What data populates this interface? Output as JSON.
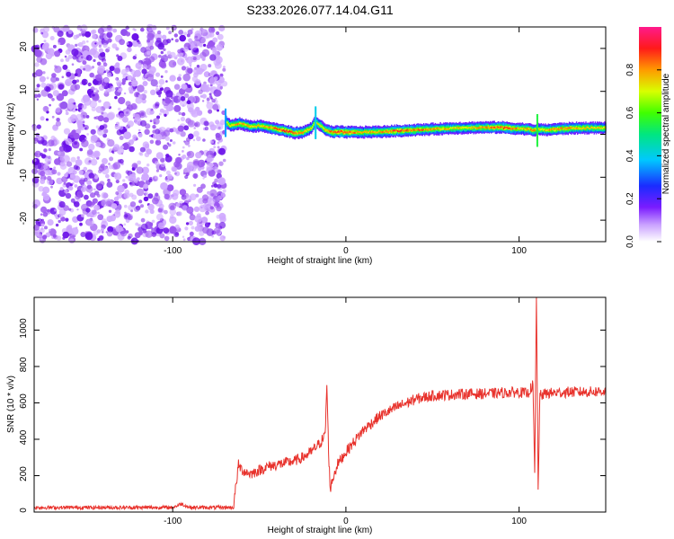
{
  "title": "S233.2026.077.14.04.G11",
  "colors": {
    "snr_line": "#e8322c",
    "speckle": "#8a2be2",
    "axis": "#000000"
  },
  "chart_data": [
    {
      "type": "heatmap",
      "name": "spectrogram",
      "title": "S233.2026.077.14.04.G11",
      "xlabel": "Height of straight line (km)",
      "ylabel": "Frequency (Hz)",
      "xlim": [
        -180,
        150
      ],
      "ylim": [
        -25,
        25
      ],
      "xticks": [
        -100,
        0,
        100
      ],
      "xtick_labels": [
        "-100",
        "0",
        "100"
      ],
      "yticks": [
        -20,
        -10,
        0,
        10,
        20
      ],
      "ytick_labels": [
        "-20",
        "-10",
        "0",
        "10",
        "20"
      ],
      "colorbar": {
        "label": "Normalized spectral amplitude",
        "range": [
          0,
          1
        ],
        "ticks": [
          0,
          0.2,
          0.4,
          0.6,
          0.8
        ],
        "tick_labels": [
          "0.0",
          "0.2",
          "0.4",
          "0.6",
          "0.8"
        ]
      },
      "noise_region_x": [
        -180,
        -70
      ],
      "ridge": {
        "x": [
          -70,
          -67,
          -62,
          -55,
          -50,
          -45,
          -40,
          -35,
          -30,
          -25,
          -20,
          -18,
          -15,
          -12,
          -8,
          -5,
          0,
          10,
          20,
          30,
          40,
          50,
          60,
          70,
          80,
          90,
          95,
          100,
          105,
          108,
          110,
          115,
          120,
          130,
          140,
          150
        ],
        "freq": [
          3.0,
          2.0,
          2.5,
          1.8,
          2.0,
          1.6,
          1.2,
          0.8,
          0.3,
          0.5,
          1.5,
          3.0,
          2.0,
          1.0,
          0.5,
          0.6,
          0.5,
          0.5,
          0.6,
          0.8,
          1.0,
          1.2,
          1.4,
          1.5,
          1.6,
          1.6,
          1.4,
          1.3,
          1.2,
          0.8,
          1.2,
          1.0,
          1.2,
          1.4,
          1.5,
          1.5
        ],
        "intensity": [
          0.75,
          0.8,
          0.85,
          0.8,
          0.8,
          0.85,
          0.9,
          0.95,
          0.9,
          0.85,
          0.75,
          0.8,
          0.75,
          0.85,
          0.9,
          0.95,
          0.95,
          0.8,
          0.85,
          0.95,
          0.9,
          0.85,
          0.8,
          0.8,
          0.85,
          0.95,
          0.9,
          0.8,
          0.85,
          0.9,
          0.8,
          0.8,
          0.9,
          0.85,
          0.8,
          0.8
        ]
      }
    },
    {
      "type": "line",
      "name": "snr",
      "xlabel": "Height of straight line (km)",
      "ylabel": "SNR (10 * v/v)",
      "xlim": [
        -180,
        150
      ],
      "ylim": [
        0,
        1180
      ],
      "xticks": [
        -100,
        0,
        100
      ],
      "xtick_labels": [
        "-100",
        "0",
        "100"
      ],
      "yticks": [
        0,
        200,
        400,
        600,
        800,
        1000
      ],
      "ytick_labels": [
        "0",
        "200",
        "400",
        "600",
        "800",
        "1000"
      ],
      "series": [
        {
          "name": "SNR",
          "x": [
            -180,
            -150,
            -120,
            -100,
            -95,
            -90,
            -75,
            -65,
            -62,
            -60,
            -55,
            -50,
            -45,
            -40,
            -35,
            -30,
            -25,
            -20,
            -15,
            -12,
            -11,
            -10,
            -9,
            -8,
            -5,
            0,
            5,
            10,
            20,
            30,
            40,
            50,
            60,
            70,
            80,
            90,
            100,
            105,
            108,
            109,
            110,
            111,
            112,
            115,
            120,
            130,
            140,
            150
          ],
          "y": [
            25,
            25,
            25,
            25,
            45,
            25,
            25,
            25,
            260,
            230,
            210,
            230,
            250,
            260,
            270,
            280,
            300,
            330,
            380,
            420,
            700,
            330,
            120,
            170,
            260,
            330,
            390,
            450,
            530,
            580,
            620,
            640,
            645,
            650,
            650,
            655,
            660,
            650,
            700,
            200,
            1180,
            120,
            640,
            650,
            655,
            660,
            660,
            665
          ],
          "noise_amplitude": 30
        }
      ]
    }
  ]
}
